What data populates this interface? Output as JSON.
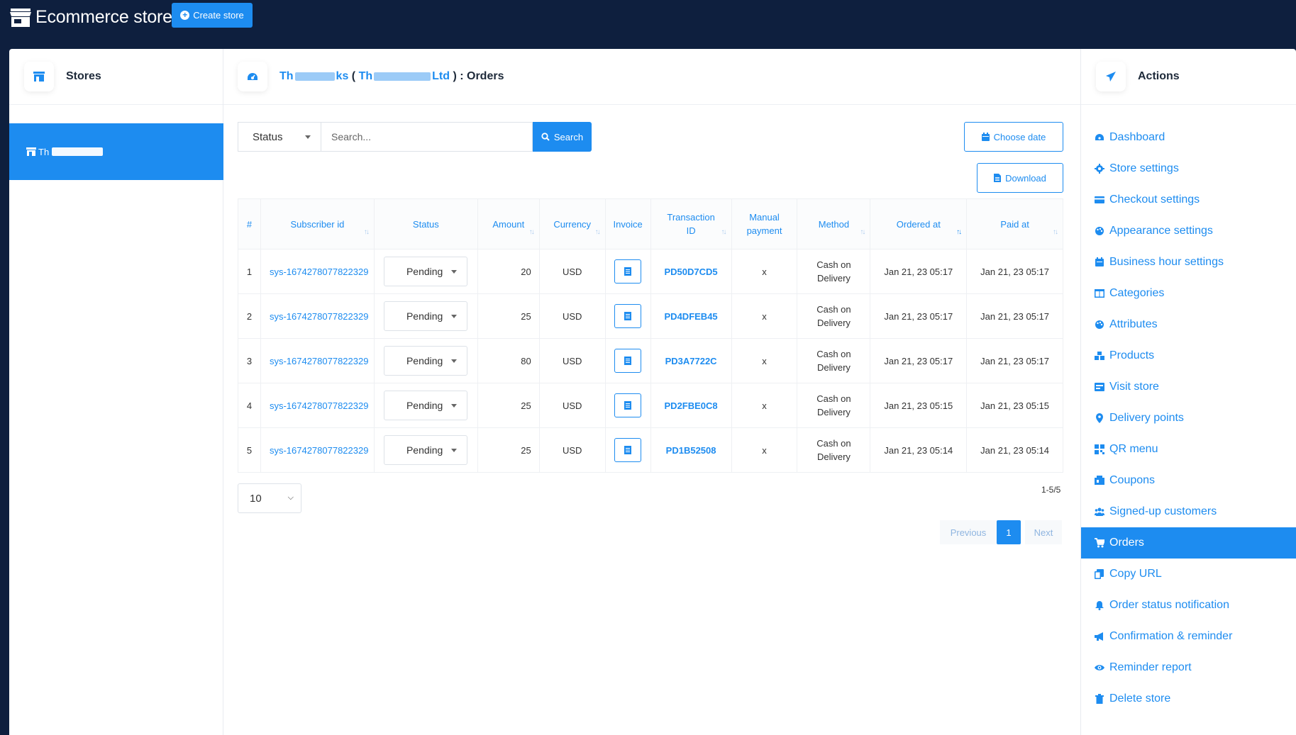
{
  "topbar": {
    "brand_title": "Ecommerce store",
    "create_label": "Create store"
  },
  "stores": {
    "title": "Stores",
    "selected_prefix": "Th"
  },
  "main": {
    "title_part1": "Th",
    "title_part1b": "ks",
    "title_paren_open": "(",
    "title_part2": "Th",
    "title_part2b": "Ltd",
    "title_suffix": ") : Orders",
    "status_label": "Status",
    "search_placeholder": "Search...",
    "search_label": "Search",
    "choose_date_label": "Choose date",
    "download_label": "Download",
    "columns": [
      "#",
      "Subscriber id",
      "Status",
      "Amount",
      "Currency",
      "Invoice",
      "Transaction ID",
      "Manual payment",
      "Method",
      "Ordered at",
      "Paid at"
    ],
    "rows": [
      {
        "num": "1",
        "subscriber": "sys-1674278077822329",
        "status": "Pending",
        "amount": "20",
        "currency": "USD",
        "txn": "PD50D7CD5",
        "manual": "x",
        "method": "Cash on Delivery",
        "ordered": "Jan 21, 23 05:17",
        "paid": "Jan 21, 23 05:17"
      },
      {
        "num": "2",
        "subscriber": "sys-1674278077822329",
        "status": "Pending",
        "amount": "25",
        "currency": "USD",
        "txn": "PD4DFEB45",
        "manual": "x",
        "method": "Cash on Delivery",
        "ordered": "Jan 21, 23 05:17",
        "paid": "Jan 21, 23 05:17"
      },
      {
        "num": "3",
        "subscriber": "sys-1674278077822329",
        "status": "Pending",
        "amount": "80",
        "currency": "USD",
        "txn": "PD3A7722C",
        "manual": "x",
        "method": "Cash on Delivery",
        "ordered": "Jan 21, 23 05:17",
        "paid": "Jan 21, 23 05:17"
      },
      {
        "num": "4",
        "subscriber": "sys-1674278077822329",
        "status": "Pending",
        "amount": "25",
        "currency": "USD",
        "txn": "PD2FBE0C8",
        "manual": "x",
        "method": "Cash on Delivery",
        "ordered": "Jan 21, 23 05:15",
        "paid": "Jan 21, 23 05:15"
      },
      {
        "num": "5",
        "subscriber": "sys-1674278077822329",
        "status": "Pending",
        "amount": "25",
        "currency": "USD",
        "txn": "PD1B52508",
        "manual": "x",
        "method": "Cash on Delivery",
        "ordered": "Jan 21, 23 05:14",
        "paid": "Jan 21, 23 05:14"
      }
    ],
    "per_page": "10",
    "range_info": "1-5/5",
    "pager": {
      "prev": "Previous",
      "current": "1",
      "next": "Next"
    }
  },
  "actions": {
    "title": "Actions",
    "items": [
      {
        "label": "Dashboard",
        "icon": "dashboard-icon",
        "active": false
      },
      {
        "label": "Store settings",
        "icon": "gear-icon",
        "active": false
      },
      {
        "label": "Checkout settings",
        "icon": "credit-card-icon",
        "active": false
      },
      {
        "label": "Appearance settings",
        "icon": "palette-icon",
        "active": false
      },
      {
        "label": "Business hour settings",
        "icon": "calendar-icon",
        "active": false
      },
      {
        "label": "Categories",
        "icon": "columns-icon",
        "active": false
      },
      {
        "label": "Attributes",
        "icon": "palette-icon",
        "active": false
      },
      {
        "label": "Products",
        "icon": "boxes-icon",
        "active": false
      },
      {
        "label": "Visit store",
        "icon": "storefront-icon",
        "active": false
      },
      {
        "label": "Delivery points",
        "icon": "map-pin-icon",
        "active": false
      },
      {
        "label": "QR menu",
        "icon": "qr-icon",
        "active": false
      },
      {
        "label": "Coupons",
        "icon": "coupon-icon",
        "active": false
      },
      {
        "label": "Signed-up customers",
        "icon": "users-icon",
        "active": false
      },
      {
        "label": "Orders",
        "icon": "cart-icon",
        "active": true
      },
      {
        "label": "Copy URL",
        "icon": "copy-icon",
        "active": false
      },
      {
        "label": "Order status notification",
        "icon": "bell-icon",
        "active": false
      },
      {
        "label": "Confirmation & reminder",
        "icon": "megaphone-icon",
        "active": false
      },
      {
        "label": "Reminder report",
        "icon": "eye-icon",
        "active": false
      },
      {
        "label": "Delete store",
        "icon": "trash-icon",
        "active": false
      }
    ]
  },
  "colors": {
    "navy": "#0e1f3e",
    "accent": "#1d8cf0"
  }
}
